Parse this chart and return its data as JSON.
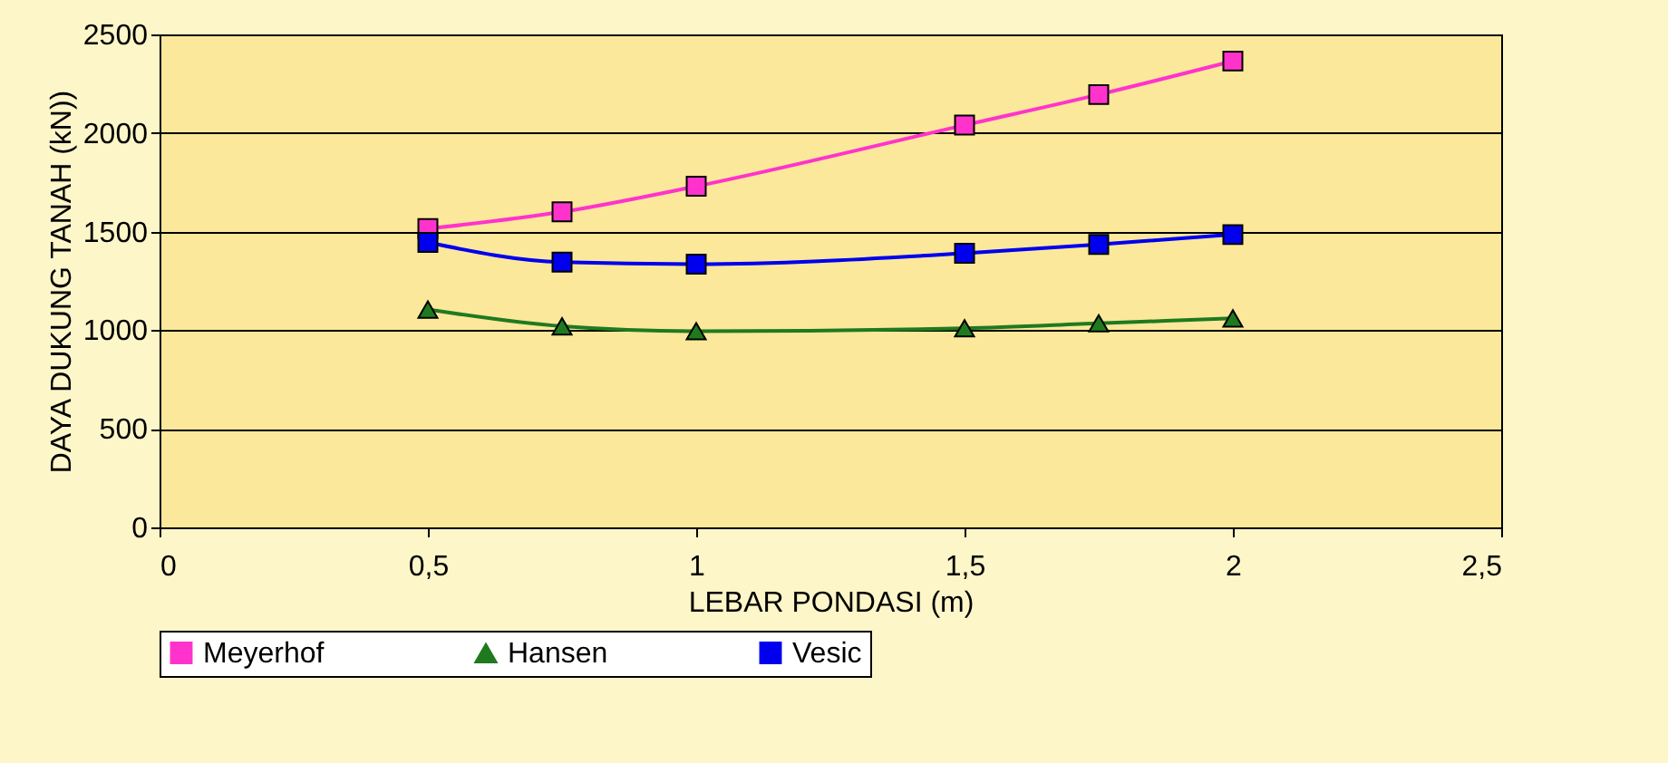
{
  "chart_data": {
    "type": "line",
    "xlabel": "LEBAR PONDASI (m)",
    "ylabel": "DAYA DUKUNG TANAH (kN))",
    "x": [
      0.5,
      0.75,
      1,
      1.5,
      1.75,
      2
    ],
    "series": [
      {
        "name": "Meyerhof",
        "color": "#ff33cc",
        "marker": "square",
        "values": [
          1515,
          1600,
          1730,
          2040,
          2195,
          2365
        ]
      },
      {
        "name": "Hansen",
        "color": "#1f7a1f",
        "marker": "triangle",
        "values": [
          1105,
          1020,
          995,
          1010,
          1035,
          1060
        ]
      },
      {
        "name": "Vesic",
        "color": "#0000ee",
        "marker": "square",
        "values": [
          1445,
          1345,
          1335,
          1390,
          1435,
          1485
        ]
      }
    ],
    "xlim": [
      0,
      2.5
    ],
    "xticks": [
      0,
      {
        "value": 0.5,
        "label": "0,5"
      },
      1,
      {
        "value": 1.5,
        "label": "1,5"
      },
      2,
      {
        "value": 2.5,
        "label": "2,5"
      }
    ],
    "ylim": [
      0,
      2500
    ],
    "yticks": [
      0,
      500,
      1000,
      1500,
      2000,
      2500
    ],
    "grid": "y",
    "legend": "bottom",
    "line_style": "solid"
  }
}
